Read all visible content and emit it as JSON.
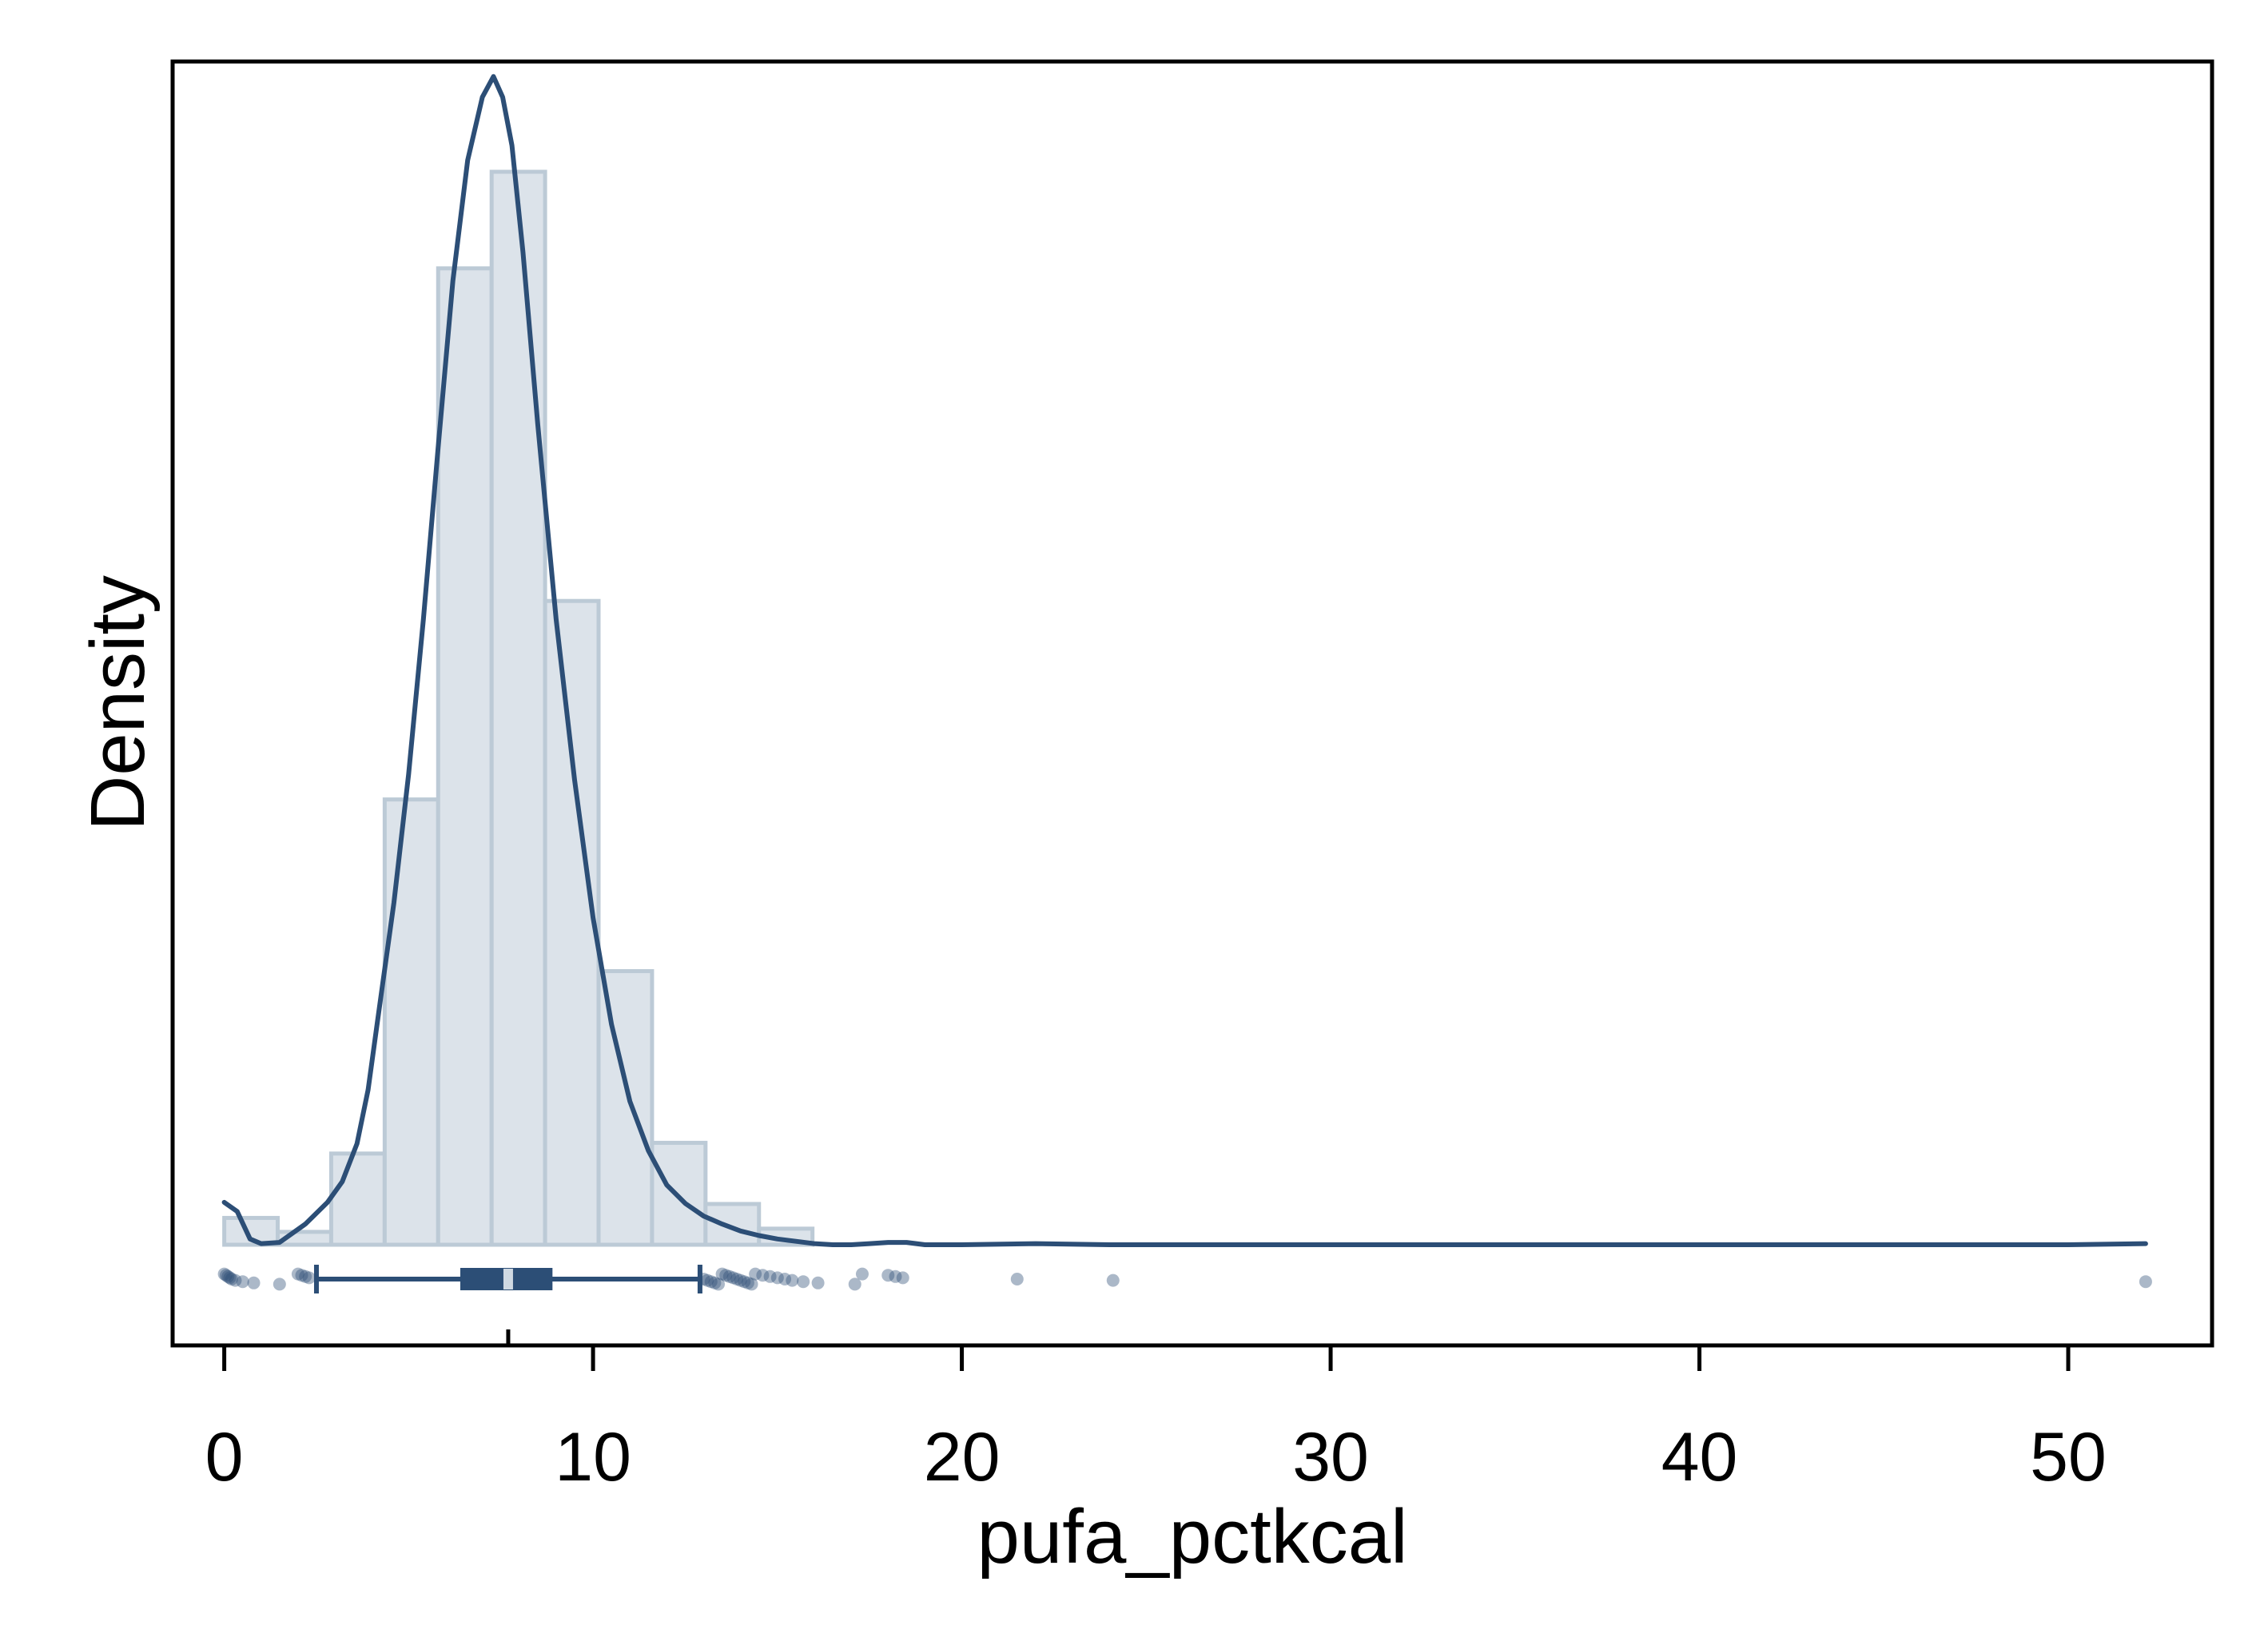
{
  "chart_data": {
    "type": "histogram",
    "xlabel": "pufa_pctkcal",
    "ylabel": "Density",
    "xlim": [
      -1.4,
      53.9
    ],
    "xticks": [
      "0",
      "10",
      "20",
      "30",
      "40",
      "50"
    ],
    "xtick_values": [
      0,
      10,
      20,
      30,
      40,
      50
    ],
    "y_ticks_shown": false,
    "grid": false,
    "colors": {
      "bar_fill": "#dce3ea",
      "bar_stroke": "#bccad6",
      "kde_line": "#2c4e76",
      "box_fill": "#2c4e76",
      "points": "#2c4e76",
      "median_marker": "#cfd9e3",
      "frame": "#000000"
    },
    "histogram": {
      "bin_edges": [
        0,
        1.45,
        2.9,
        4.35,
        5.8,
        7.25,
        8.7,
        10.15,
        11.6,
        13.05,
        14.5,
        15.95
      ],
      "relative_heights": [
        0.025,
        0.012,
        0.085,
        0.415,
        0.91,
        1.0,
        0.6,
        0.255,
        0.095,
        0.038,
        0.015
      ]
    },
    "kde": {
      "x": [
        0,
        0.35,
        0.7,
        1.0,
        1.5,
        2.2,
        2.8,
        3.2,
        3.6,
        3.9,
        4.2,
        4.6,
        5.0,
        5.4,
        5.8,
        6.2,
        6.6,
        7.0,
        7.3,
        7.55,
        7.8,
        8.1,
        8.5,
        9.0,
        9.5,
        10.0,
        10.5,
        11.0,
        11.5,
        12.0,
        12.5,
        13.0,
        13.5,
        14.0,
        14.5,
        15.0,
        15.5,
        16.0,
        16.5,
        17.0,
        17.5,
        18.0,
        18.5,
        19.0,
        20.0,
        22.0,
        24.0,
        26.0,
        30.0,
        40.0,
        50.0,
        52.1
      ],
      "y": [
        0.037,
        0.029,
        0.005,
        0.001,
        0.002,
        0.018,
        0.037,
        0.055,
        0.088,
        0.135,
        0.205,
        0.298,
        0.41,
        0.545,
        0.695,
        0.84,
        0.945,
        1.0,
        1.018,
        1.0,
        0.958,
        0.865,
        0.715,
        0.545,
        0.405,
        0.285,
        0.192,
        0.125,
        0.082,
        0.052,
        0.036,
        0.025,
        0.018,
        0.012,
        0.008,
        0.005,
        0.003,
        0.001,
        0.0,
        0.0,
        0.001,
        0.002,
        0.002,
        0.0,
        0.0,
        0.001,
        0.0,
        0.0,
        0.0,
        0.0,
        0.0,
        0.001
      ]
    },
    "boxplot": {
      "whisker_low": 2.5,
      "q1": 6.4,
      "median": 7.7,
      "q3": 8.9,
      "whisker_high": 12.9,
      "outliers": [
        0.0,
        0.05,
        0.1,
        0.15,
        0.2,
        0.3,
        0.5,
        0.8,
        1.5,
        2.0,
        2.1,
        2.2,
        2.3,
        13.0,
        13.1,
        13.2,
        13.3,
        13.4,
        13.5,
        13.6,
        13.7,
        13.8,
        13.9,
        14.0,
        14.1,
        14.2,
        14.3,
        14.4,
        14.6,
        14.8,
        15.0,
        15.2,
        15.4,
        15.7,
        16.1,
        17.1,
        17.3,
        18.0,
        18.2,
        18.4,
        21.5,
        24.1,
        52.1
      ]
    }
  }
}
